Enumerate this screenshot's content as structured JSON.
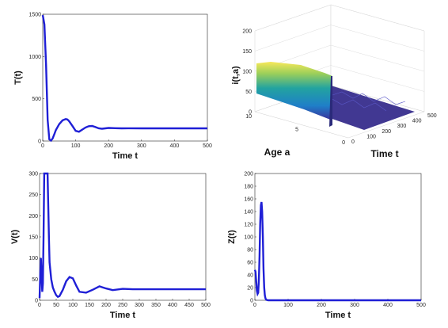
{
  "colors": {
    "line": "#1f1fd6",
    "surface_low": "#3b2f9a",
    "surface_mid": "#22a3a0",
    "surface_high": "#f7e85a"
  },
  "chart_data": [
    {
      "type": "line",
      "id": "T",
      "ylabel": "T(t)",
      "xlabel": "Time t",
      "xlim": [
        0,
        500
      ],
      "ylim": [
        0,
        1500
      ],
      "xticks": [
        "0",
        "100",
        "200",
        "300",
        "400",
        "500"
      ],
      "yticks": [
        "0",
        "500",
        "1000",
        "1500"
      ],
      "series": [
        {
          "x": [
            0,
            5,
            10,
            15,
            20,
            25,
            30,
            35,
            40,
            50,
            60,
            70,
            75,
            80,
            90,
            100,
            110,
            120,
            130,
            140,
            150,
            160,
            170,
            180,
            190,
            200,
            220,
            240,
            260,
            300,
            400,
            500
          ],
          "values": [
            1490,
            1380,
            900,
            250,
            20,
            5,
            30,
            80,
            130,
            200,
            245,
            260,
            255,
            235,
            180,
            120,
            110,
            135,
            160,
            175,
            178,
            165,
            150,
            145,
            150,
            155,
            152,
            150,
            151,
            150,
            150,
            150
          ]
        }
      ]
    },
    {
      "type": "surface",
      "id": "I",
      "zlabel": "i(t,a)",
      "xlabel": "Time t",
      "ylabel": "Age a",
      "xlim": [
        0,
        500
      ],
      "ylim": [
        0,
        10
      ],
      "zlim": [
        0,
        200
      ],
      "xticks": [
        "0",
        "100",
        "200",
        "300",
        "400",
        "500"
      ],
      "yticks": [
        "0",
        "5",
        "10"
      ],
      "zticks": [
        "0",
        "50",
        "100",
        "150",
        "200"
      ],
      "initial_profile_max": 125,
      "later_level": 10
    },
    {
      "type": "line",
      "id": "V",
      "ylabel": "V(t)",
      "xlabel": "Time t",
      "xlim": [
        0,
        500
      ],
      "ylim": [
        0,
        300
      ],
      "xticks": [
        "0",
        "50",
        "100",
        "150",
        "200",
        "250",
        "300",
        "350",
        "400",
        "450",
        "500"
      ],
      "yticks": [
        "0",
        "50",
        "100",
        "150",
        "200",
        "250",
        "300"
      ],
      "series": [
        {
          "x": [
            0,
            2,
            4,
            6,
            8,
            10,
            12,
            14,
            16,
            18,
            20,
            22,
            24,
            26,
            28,
            30,
            35,
            40,
            45,
            50,
            55,
            60,
            70,
            80,
            90,
            100,
            110,
            120,
            140,
            160,
            180,
            200,
            220,
            250,
            280,
            300,
            400,
            500
          ],
          "values": [
            5,
            60,
            100,
            60,
            20,
            40,
            150,
            300,
            300,
            300,
            300,
            300,
            300,
            230,
            150,
            90,
            50,
            30,
            20,
            12,
            8,
            10,
            25,
            45,
            55,
            52,
            35,
            20,
            18,
            25,
            33,
            28,
            24,
            27,
            26,
            26,
            26,
            26
          ]
        }
      ]
    },
    {
      "type": "line",
      "id": "Z",
      "ylabel": "Z(t)",
      "xlabel": "Time t",
      "xlim": [
        0,
        500
      ],
      "ylim": [
        0,
        200
      ],
      "xticks": [
        "0",
        "100",
        "200",
        "300",
        "400",
        "500"
      ],
      "yticks": [
        "0",
        "20",
        "40",
        "60",
        "80",
        "100",
        "120",
        "140",
        "160",
        "180",
        "200"
      ],
      "series": [
        {
          "x": [
            0,
            2,
            4,
            6,
            8,
            10,
            12,
            14,
            16,
            18,
            20,
            22,
            24,
            26,
            28,
            30,
            32,
            34,
            36,
            40,
            50,
            100,
            500
          ],
          "values": [
            48,
            45,
            30,
            15,
            10,
            12,
            30,
            70,
            120,
            150,
            155,
            140,
            100,
            50,
            20,
            8,
            3,
            1,
            0.5,
            0,
            0,
            0,
            0
          ]
        }
      ]
    }
  ]
}
